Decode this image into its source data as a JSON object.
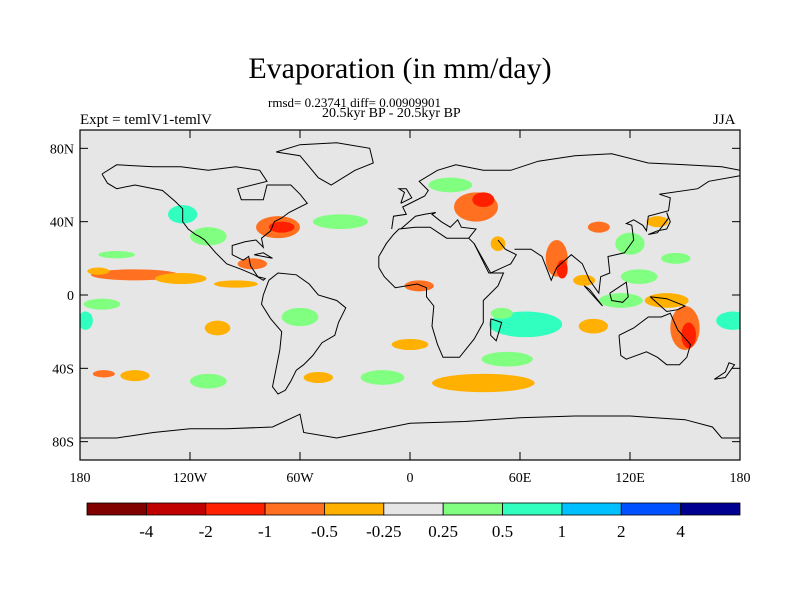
{
  "title": "Evaporation (in mm/day)",
  "stats": "rmsd= 0.23741 diff= 0.00909901",
  "period": "20.5kyr BP - 20.5kyr BP",
  "experiment": "Expt = temlV1-temlV",
  "season": "JJA",
  "map": {
    "projection": "cylindrical equidistant",
    "lon_range": [
      -180,
      180
    ],
    "lat_range": [
      -90,
      90
    ],
    "background_color": "#e6e6e6",
    "lat_ticks": [
      {
        "value": 80,
        "label": "80N"
      },
      {
        "value": 40,
        "label": "40N"
      },
      {
        "value": 0,
        "label": "0"
      },
      {
        "value": -40,
        "label": "40S"
      },
      {
        "value": -80,
        "label": "80S"
      }
    ],
    "lon_ticks": [
      {
        "value": -180,
        "label": "180"
      },
      {
        "value": -120,
        "label": "120W"
      },
      {
        "value": -60,
        "label": "60W"
      },
      {
        "value": 0,
        "label": "0"
      },
      {
        "value": 60,
        "label": "60E"
      },
      {
        "value": 120,
        "label": "120E"
      },
      {
        "value": 180,
        "label": "180"
      }
    ]
  },
  "colorbar": {
    "colors": [
      "#800000",
      "#c00000",
      "#ff2000",
      "#ff7020",
      "#ffb000",
      "#e6e6e6",
      "#80ff80",
      "#30ffc0",
      "#00c0ff",
      "#0050ff",
      "#000090"
    ],
    "labels": [
      "-4",
      "-2",
      "-1",
      "-0.5",
      "-0.25",
      "0.25",
      "0.5",
      "1",
      "2",
      "4"
    ]
  },
  "anomalies": [
    {
      "lon": 176,
      "lat": -14,
      "rx": 9,
      "ry": 5,
      "level": 7
    },
    {
      "lon": -177,
      "lat": -14,
      "rx": 4,
      "ry": 5,
      "level": 7
    },
    {
      "lon": -168,
      "lat": -5,
      "rx": 10,
      "ry": 3,
      "level": 6
    },
    {
      "lon": -150,
      "lat": 11,
      "rx": 24,
      "ry": 3,
      "level": 3
    },
    {
      "lon": -170,
      "lat": 13,
      "rx": 6,
      "ry": 2,
      "level": 4
    },
    {
      "lon": -125,
      "lat": 9,
      "rx": 14,
      "ry": 3,
      "level": 4
    },
    {
      "lon": -95,
      "lat": 6,
      "rx": 12,
      "ry": 2,
      "level": 4
    },
    {
      "lon": -160,
      "lat": 22,
      "rx": 10,
      "ry": 2,
      "level": 6
    },
    {
      "lon": -150,
      "lat": -44,
      "rx": 8,
      "ry": 3,
      "level": 4
    },
    {
      "lon": -167,
      "lat": -43,
      "rx": 6,
      "ry": 2,
      "level": 3
    },
    {
      "lon": -124,
      "lat": 44,
      "rx": 8,
      "ry": 5,
      "level": 7
    },
    {
      "lon": -110,
      "lat": 32,
      "rx": 10,
      "ry": 5,
      "level": 6
    },
    {
      "lon": -72,
      "lat": 37,
      "rx": 12,
      "ry": 6,
      "level": 3
    },
    {
      "lon": -70,
      "lat": 37,
      "rx": 7,
      "ry": 3,
      "level": 2
    },
    {
      "lon": -38,
      "lat": 40,
      "rx": 15,
      "ry": 4,
      "level": 6
    },
    {
      "lon": -86,
      "lat": 17,
      "rx": 8,
      "ry": 3,
      "level": 3
    },
    {
      "lon": -105,
      "lat": -18,
      "rx": 7,
      "ry": 4,
      "level": 4
    },
    {
      "lon": -60,
      "lat": -12,
      "rx": 10,
      "ry": 5,
      "level": 6
    },
    {
      "lon": -110,
      "lat": -47,
      "rx": 10,
      "ry": 4,
      "level": 6
    },
    {
      "lon": 36,
      "lat": 48,
      "rx": 12,
      "ry": 8,
      "level": 3
    },
    {
      "lon": 40,
      "lat": 52,
      "rx": 6,
      "ry": 4,
      "level": 2
    },
    {
      "lon": 22,
      "lat": 60,
      "rx": 12,
      "ry": 4,
      "level": 6
    },
    {
      "lon": 48,
      "lat": 28,
      "rx": 4,
      "ry": 4,
      "level": 4
    },
    {
      "lon": 80,
      "lat": 20,
      "rx": 6,
      "ry": 10,
      "level": 3
    },
    {
      "lon": 83,
      "lat": 14,
      "rx": 3,
      "ry": 5,
      "level": 2
    },
    {
      "lon": 103,
      "lat": 37,
      "rx": 6,
      "ry": 3,
      "level": 3
    },
    {
      "lon": 120,
      "lat": 28,
      "rx": 8,
      "ry": 6,
      "level": 6
    },
    {
      "lon": 125,
      "lat": 10,
      "rx": 10,
      "ry": 4,
      "level": 6
    },
    {
      "lon": 115,
      "lat": -3,
      "rx": 12,
      "ry": 4,
      "level": 6
    },
    {
      "lon": 140,
      "lat": -3,
      "rx": 12,
      "ry": 4,
      "level": 4
    },
    {
      "lon": 63,
      "lat": -16,
      "rx": 20,
      "ry": 7,
      "level": 7
    },
    {
      "lon": 50,
      "lat": -10,
      "rx": 6,
      "ry": 3,
      "level": 6
    },
    {
      "lon": 150,
      "lat": -18,
      "rx": 8,
      "ry": 12,
      "level": 3
    },
    {
      "lon": 152,
      "lat": -22,
      "rx": 4,
      "ry": 7,
      "level": 2
    },
    {
      "lon": 100,
      "lat": -17,
      "rx": 8,
      "ry": 4,
      "level": 4
    },
    {
      "lon": 53,
      "lat": -35,
      "rx": 14,
      "ry": 4,
      "level": 6
    },
    {
      "lon": 40,
      "lat": -48,
      "rx": 28,
      "ry": 5,
      "level": 4
    },
    {
      "lon": -15,
      "lat": -45,
      "rx": 12,
      "ry": 4,
      "level": 6
    },
    {
      "lon": -50,
      "lat": -45,
      "rx": 8,
      "ry": 3,
      "level": 4
    },
    {
      "lon": 0,
      "lat": -27,
      "rx": 10,
      "ry": 3,
      "level": 4
    },
    {
      "lon": 5,
      "lat": 5,
      "rx": 8,
      "ry": 3,
      "level": 3
    },
    {
      "lon": 95,
      "lat": 8,
      "rx": 6,
      "ry": 3,
      "level": 4
    },
    {
      "lon": 135,
      "lat": 40,
      "rx": 6,
      "ry": 3,
      "level": 4
    },
    {
      "lon": 145,
      "lat": 20,
      "rx": 8,
      "ry": 3,
      "level": 6
    }
  ]
}
